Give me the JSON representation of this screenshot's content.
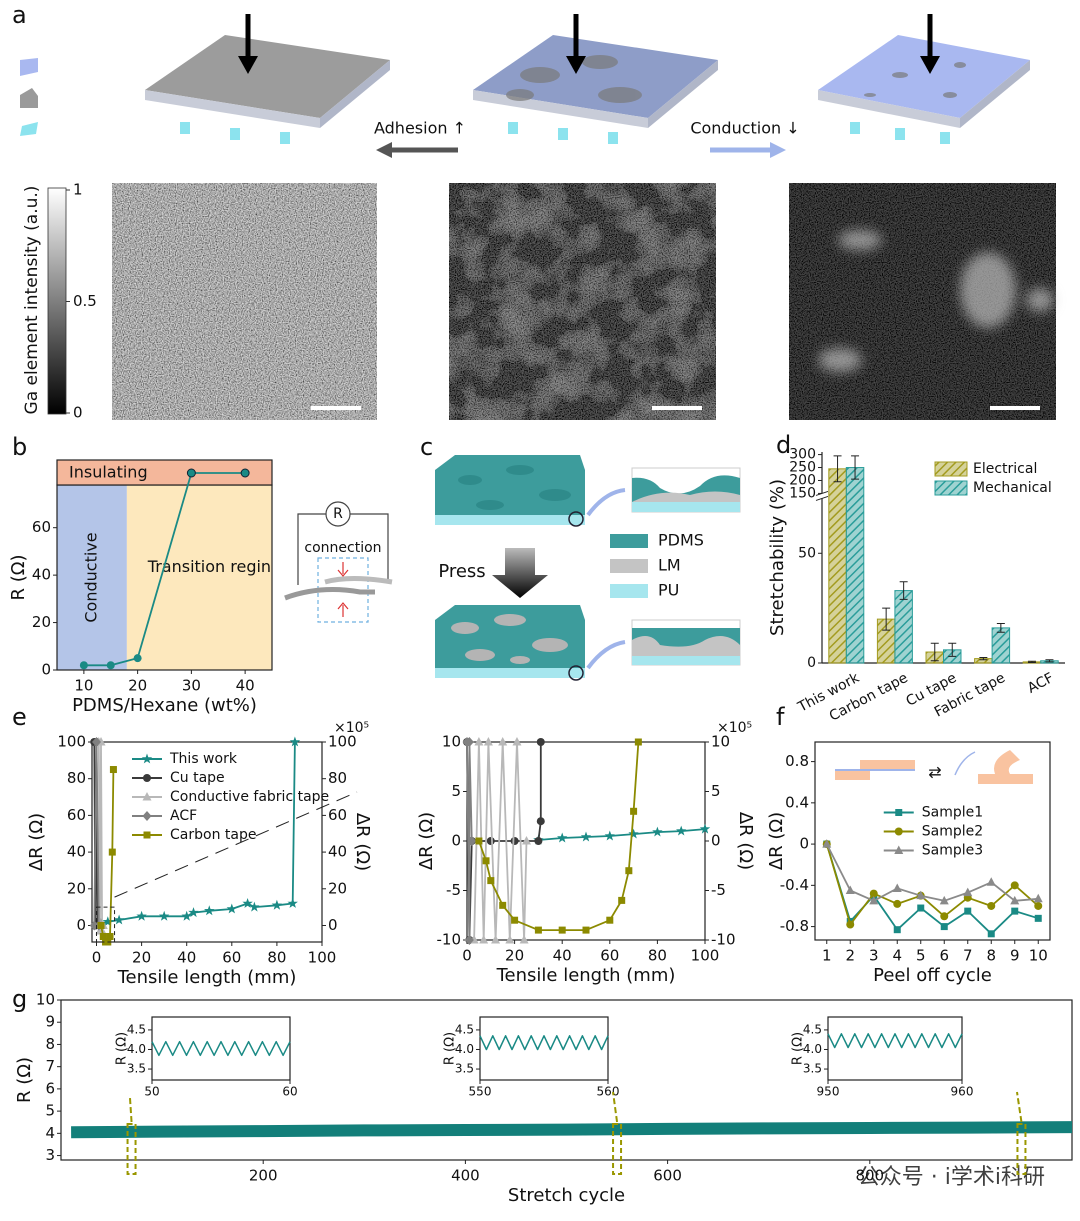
{
  "panel_labels": [
    "a",
    "b",
    "c",
    "d",
    "e",
    "f",
    "g"
  ],
  "panel_a": {
    "arrow_labels": [
      "Adhesion ↑",
      "Conduction ↓"
    ],
    "colorbar": {
      "label": "Ga element intensity (a.u.)",
      "lim": [
        0,
        1
      ],
      "ticks": [
        0,
        0.5,
        1
      ]
    }
  },
  "panel_c": {
    "action": "Press",
    "legend": [
      {
        "name": "PDMS",
        "color": "#3d9c9c"
      },
      {
        "name": "LM",
        "color": "#c4c4c4"
      },
      {
        "name": "PU",
        "color": "#a6e6ee"
      }
    ]
  },
  "watermark": "公众号 · i学术i科研",
  "chart_data": [
    {
      "type": "line",
      "xlabel": "PDMS/Hexane (wt%)",
      "ylabel": "R (Ω)",
      "xlim": [
        5,
        45
      ],
      "xticks": [
        10,
        20,
        30,
        40
      ],
      "ylim": [
        0,
        78
      ],
      "yticks": [
        0,
        20,
        40,
        60
      ],
      "regions": [
        {
          "label": "Conductive",
          "from": 5,
          "to": 18,
          "color": "#b4c5e8"
        },
        {
          "label": "Transition regin",
          "from": 18,
          "to": 45,
          "color": "#fde8bd"
        }
      ],
      "insulating": {
        "label": "Insulating",
        "color": "#f4b79b",
        "x": [
          30,
          40
        ]
      },
      "circuit": {
        "resistor": "R",
        "label": "connection"
      },
      "series": [
        {
          "color": "#1a8a85",
          "marker": "circle",
          "x": [
            10,
            15,
            20
          ],
          "values": [
            2,
            2,
            5
          ]
        }
      ]
    },
    {
      "type": "bar",
      "ylabel": "Stretchability (%)",
      "categories": [
        "This work",
        "Carbon tape",
        "Cu tape",
        "Fabric tape",
        "ACF"
      ],
      "ylim": [
        0,
        310
      ],
      "y_break": [
        75,
        150
      ],
      "yticks": [
        0,
        50,
        150,
        200,
        250,
        300
      ],
      "legend": "upper-right",
      "series": [
        {
          "name": "Electrical",
          "color": "#a39b1f",
          "values": [
            245,
            20,
            5,
            2,
            0.5
          ],
          "errors": [
            50,
            5,
            4,
            0.5,
            0.3
          ]
        },
        {
          "name": "Mechanical",
          "color": "#2a9d9a",
          "values": [
            250,
            33,
            6,
            16,
            1
          ],
          "errors": [
            45,
            4,
            3,
            2,
            0.5
          ]
        }
      ]
    },
    {
      "type": "line",
      "xlabel": "Tensile length (mm)",
      "ylabel": "ΔR (Ω)",
      "y2label": "ΔR (Ω)",
      "y2_scale": "×10⁵",
      "xlim": [
        -2,
        100
      ],
      "xticks": [
        0,
        20,
        40,
        60,
        80,
        100
      ],
      "ylim": [
        -9,
        100
      ],
      "yticks": [
        0,
        20,
        40,
        60,
        80,
        100
      ],
      "y2lim": [
        -9,
        100
      ],
      "y2ticks": [
        0,
        20,
        40,
        60,
        80,
        100
      ],
      "legend": "upper-left",
      "series": [
        {
          "name": "This work",
          "color": "#1a8a85",
          "marker": "star",
          "x": [
            0,
            5,
            10,
            20,
            30,
            40,
            43,
            50,
            60,
            67,
            70,
            80,
            87,
            88
          ],
          "values": [
            0,
            2,
            3,
            5,
            5,
            5,
            7,
            8,
            9,
            12,
            10,
            11,
            12,
            100
          ]
        },
        {
          "name": "Cu tape",
          "color": "#3a3a3a",
          "marker": "circle",
          "x": [
            -1,
            -0.5,
            0,
            0.5,
            1
          ],
          "values": [
            100,
            0,
            100,
            2,
            2
          ]
        },
        {
          "name": "Conductive fabric tape",
          "color": "#b8b8b8",
          "marker": "triangle",
          "x": [
            1,
            1.5,
            2,
            2.5,
            3
          ],
          "values": [
            100,
            -3,
            100,
            -3,
            0
          ]
        },
        {
          "name": "ACF",
          "color": "#808080",
          "marker": "diamond",
          "x": [
            -1,
            0,
            1
          ],
          "values": [
            0,
            100,
            0
          ]
        },
        {
          "name": "Carbon tape",
          "color": "#8c8a00",
          "marker": "square",
          "axis": "y2",
          "x": [
            2,
            3,
            4,
            5,
            6,
            7,
            7.5
          ],
          "values": [
            0,
            -6,
            -9,
            -9,
            -6,
            40,
            85
          ]
        }
      ]
    },
    {
      "type": "line",
      "xlabel": "Tensile length (mm)",
      "ylabel": "ΔR (Ω)",
      "y2label": "ΔR (Ω)",
      "y2_scale": "×10⁵",
      "xlim": [
        0,
        100
      ],
      "xticks": [
        0,
        20,
        40,
        60,
        80,
        100
      ],
      "ylim": [
        -10,
        10
      ],
      "yticks": [
        -10,
        -5,
        0,
        5,
        10
      ],
      "y2lim": [
        -10,
        10
      ],
      "y2ticks": [
        -10,
        -5,
        0,
        5,
        10
      ],
      "series": [
        {
          "color": "#1a8a85",
          "marker": "star",
          "x": [
            30,
            40,
            50,
            60,
            70,
            80,
            90,
            100
          ],
          "values": [
            0.1,
            0.3,
            0.4,
            0.5,
            0.7,
            0.9,
            1.0,
            1.2
          ]
        },
        {
          "color": "#3a3a3a",
          "marker": "circle",
          "x": [
            0,
            1,
            2,
            10,
            20,
            30,
            31,
            31
          ],
          "values": [
            10,
            -10,
            0,
            0,
            0,
            0,
            2,
            10
          ]
        },
        {
          "color": "#b8b8b8",
          "marker": "triangle",
          "x": [
            3,
            5,
            7,
            9,
            12,
            15,
            18,
            21,
            24,
            25
          ],
          "values": [
            -10,
            10,
            -10,
            10,
            -10,
            10,
            -10,
            10,
            -10,
            0
          ]
        },
        {
          "color": "#808080",
          "marker": "diamond",
          "x": [
            0,
            1,
            1,
            2
          ],
          "values": [
            10,
            -10,
            10,
            0
          ]
        },
        {
          "color": "#8c8a00",
          "marker": "square",
          "axis": "y2",
          "x": [
            5,
            8,
            10,
            15,
            20,
            30,
            40,
            50,
            60,
            65,
            68,
            70,
            72
          ],
          "values": [
            0,
            -2,
            -4,
            -6.5,
            -8,
            -9,
            -9,
            -9,
            -8,
            -6,
            -3,
            3,
            10
          ]
        }
      ]
    },
    {
      "type": "line",
      "xlabel": "Peel off cycle",
      "ylabel": "ΔR (Ω)",
      "xlim": [
        0.5,
        10.5
      ],
      "xticks": [
        1,
        2,
        3,
        4,
        5,
        6,
        7,
        8,
        9,
        10
      ],
      "ylim": [
        -0.93,
        0.99
      ],
      "yticks": [
        -0.8,
        -0.4,
        0,
        0.4,
        0.8
      ],
      "legend": "center",
      "series": [
        {
          "name": "Sample1",
          "color": "#1a8a85",
          "marker": "square",
          "x": [
            1,
            2,
            3,
            4,
            5,
            6,
            7,
            8,
            9,
            10
          ],
          "values": [
            0,
            -0.75,
            -0.5,
            -0.83,
            -0.62,
            -0.8,
            -0.65,
            -0.87,
            -0.65,
            -0.72
          ]
        },
        {
          "name": "Sample2",
          "color": "#8c8a00",
          "marker": "circle",
          "x": [
            1,
            2,
            3,
            4,
            5,
            6,
            7,
            8,
            9,
            10
          ],
          "values": [
            0,
            -0.78,
            -0.48,
            -0.58,
            -0.5,
            -0.7,
            -0.52,
            -0.6,
            -0.4,
            -0.6
          ]
        },
        {
          "name": "Sample3",
          "color": "#8a8a8a",
          "marker": "triangle",
          "x": [
            1,
            2,
            3,
            4,
            5,
            6,
            7,
            8,
            9,
            10
          ],
          "values": [
            0,
            -0.45,
            -0.55,
            -0.43,
            -0.5,
            -0.55,
            -0.47,
            -0.37,
            -0.55,
            -0.53
          ]
        }
      ]
    },
    {
      "type": "line",
      "xlabel": "Stretch cycle",
      "ylabel": "R (Ω)",
      "xlim": [
        0,
        1000
      ],
      "xticks": [
        200,
        400,
        600,
        800
      ],
      "ylim": [
        2.8,
        10
      ],
      "yticks": [
        3,
        4,
        5,
        6,
        7,
        8,
        9,
        10
      ],
      "series": [
        {
          "color": "#137f7a",
          "marker": "band",
          "x": [
            10,
            100,
            200,
            300,
            400,
            500,
            600,
            700,
            800,
            900,
            1000
          ],
          "values": [
            4.05,
            4.08,
            4.1,
            4.13,
            4.15,
            4.17,
            4.2,
            4.22,
            4.24,
            4.26,
            4.28
          ]
        }
      ]
    },
    {
      "type": "line",
      "ylabel": "R (Ω)",
      "xlim": [
        50,
        60
      ],
      "xticks": [
        50,
        60
      ],
      "ylim": [
        3.22,
        4.83
      ],
      "yticks": [
        3.5,
        {
          "value": 4,
          "label": "4.0"
        },
        4.5
      ],
      "series": [
        {
          "color": "#1a8a85",
          "marker": "none",
          "x": [
            50,
            50.5,
            51,
            51.5,
            52,
            52.5,
            53,
            53.5,
            54,
            54.5,
            55,
            55.5,
            56,
            56.5,
            57,
            57.5,
            58,
            58.5,
            59,
            59.5,
            60
          ],
          "values": [
            4.2,
            3.85,
            4.2,
            3.85,
            4.2,
            3.85,
            4.2,
            3.85,
            4.2,
            3.85,
            4.2,
            3.85,
            4.2,
            3.85,
            4.2,
            3.85,
            4.2,
            3.85,
            4.2,
            3.85,
            4.2
          ]
        }
      ]
    },
    {
      "type": "line",
      "ylabel": "R (Ω)",
      "xlim": [
        550,
        560
      ],
      "xticks": [
        550,
        560
      ],
      "ylim": [
        3.22,
        4.83
      ],
      "yticks": [
        3.5,
        {
          "value": 4,
          "label": "4.0"
        },
        4.5
      ],
      "series": [
        {
          "color": "#1a8a85",
          "marker": "none",
          "x": [
            550,
            550.5,
            551,
            551.5,
            552,
            552.5,
            553,
            553.5,
            554,
            554.5,
            555,
            555.5,
            556,
            556.5,
            557,
            557.5,
            558,
            558.5,
            559,
            559.5,
            560
          ],
          "values": [
            4.35,
            4.0,
            4.35,
            4.0,
            4.35,
            4.0,
            4.35,
            4.0,
            4.35,
            4.0,
            4.35,
            4.0,
            4.35,
            4.0,
            4.35,
            4.0,
            4.35,
            4.0,
            4.35,
            4.0,
            4.35
          ]
        }
      ]
    },
    {
      "type": "line",
      "ylabel": "R (Ω)",
      "xlim": [
        950,
        960
      ],
      "xticks": [
        950,
        960
      ],
      "ylim": [
        3.22,
        4.83
      ],
      "yticks": [
        3.5,
        {
          "value": 4,
          "label": "4.0"
        },
        4.5
      ],
      "series": [
        {
          "color": "#1a8a85",
          "marker": "none",
          "x": [
            950,
            950.5,
            951,
            951.5,
            952,
            952.5,
            953,
            953.5,
            954,
            954.5,
            955,
            955.5,
            956,
            956.5,
            957,
            957.5,
            958,
            958.5,
            959,
            959.5,
            960
          ],
          "values": [
            4.4,
            4.05,
            4.4,
            4.05,
            4.4,
            4.05,
            4.4,
            4.05,
            4.4,
            4.05,
            4.4,
            4.05,
            4.4,
            4.05,
            4.4,
            4.05,
            4.4,
            4.05,
            4.4,
            4.05,
            4.4
          ]
        }
      ]
    }
  ]
}
